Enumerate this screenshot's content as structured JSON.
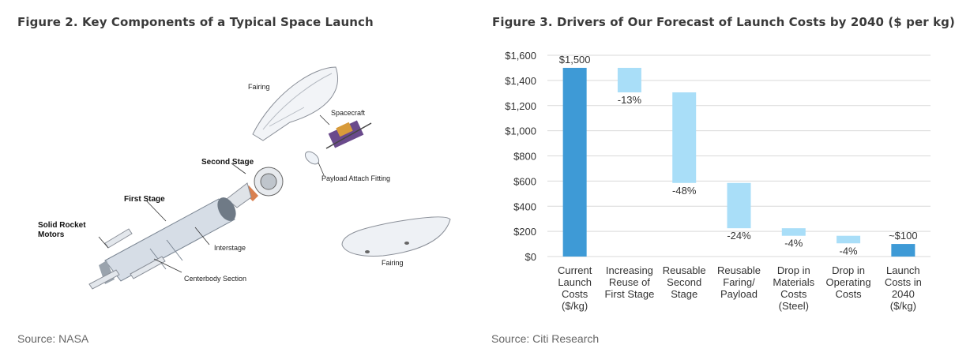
{
  "left_figure": {
    "title": "Figure 2. Key Components of a Typical Space Launch",
    "source": "Source: NASA",
    "labels": {
      "fairing_top": "Fairing",
      "spacecraft": "Spacecraft",
      "second_stage": "Second Stage",
      "payload_attach": "Payload Attach Fitting",
      "first_stage": "First Stage",
      "srm_line1": "Solid Rocket",
      "srm_line2": "Motors",
      "interstage": "Interstage",
      "centerbody": "Centerbody Section",
      "fairing_bottom": "Fairing"
    }
  },
  "right_figure": {
    "title": "Figure 3. Drivers of Our Forecast of Launch Costs by 2040 ($ per kg)",
    "source": "Source: Citi Research"
  },
  "colors": {
    "total_bar": "#3e9ad6",
    "change_bar": "#a9def8",
    "gridline": "#d9d9d9",
    "text": "#333333"
  },
  "chart_data": {
    "type": "bar",
    "subtype": "waterfall",
    "title": "Figure 3. Drivers of Our Forecast of Launch Costs by 2040 ($ per kg)",
    "xlabel": "",
    "ylabel": "",
    "ylim": [
      0,
      1600
    ],
    "yticks": [
      0,
      200,
      400,
      600,
      800,
      1000,
      1200,
      1400,
      1600
    ],
    "ytick_labels": [
      "$0",
      "$200",
      "$400",
      "$600",
      "$800",
      "$1,000",
      "$1,200",
      "$1,400",
      "$1,600"
    ],
    "grid": true,
    "legend": "none",
    "categories": [
      [
        "Current",
        "Launch",
        "Costs",
        "($/kg)"
      ],
      [
        "Increasing",
        "Reuse of",
        "First Stage"
      ],
      [
        "Reusable",
        "Second",
        "Stage"
      ],
      [
        "Reusable",
        "Faring/",
        "Payload"
      ],
      [
        "Drop in",
        "Materials",
        "Costs",
        "(Steel)"
      ],
      [
        "Drop in",
        "Operating",
        "Costs"
      ],
      [
        "Launch",
        "Costs in",
        "2040",
        "($/kg)"
      ]
    ],
    "bars": [
      {
        "kind": "total",
        "bottom": 0,
        "top": 1500,
        "label": "$1,500"
      },
      {
        "kind": "change",
        "bottom": 1305,
        "top": 1500,
        "label": "-13%"
      },
      {
        "kind": "change",
        "bottom": 585,
        "top": 1305,
        "label": "-48%"
      },
      {
        "kind": "change",
        "bottom": 225,
        "top": 585,
        "label": "-24%"
      },
      {
        "kind": "change",
        "bottom": 165,
        "top": 225,
        "label": "-4%"
      },
      {
        "kind": "change",
        "bottom": 105,
        "top": 165,
        "label": "-4%"
      },
      {
        "kind": "total",
        "bottom": 0,
        "top": 100,
        "label": "~$100"
      }
    ]
  }
}
